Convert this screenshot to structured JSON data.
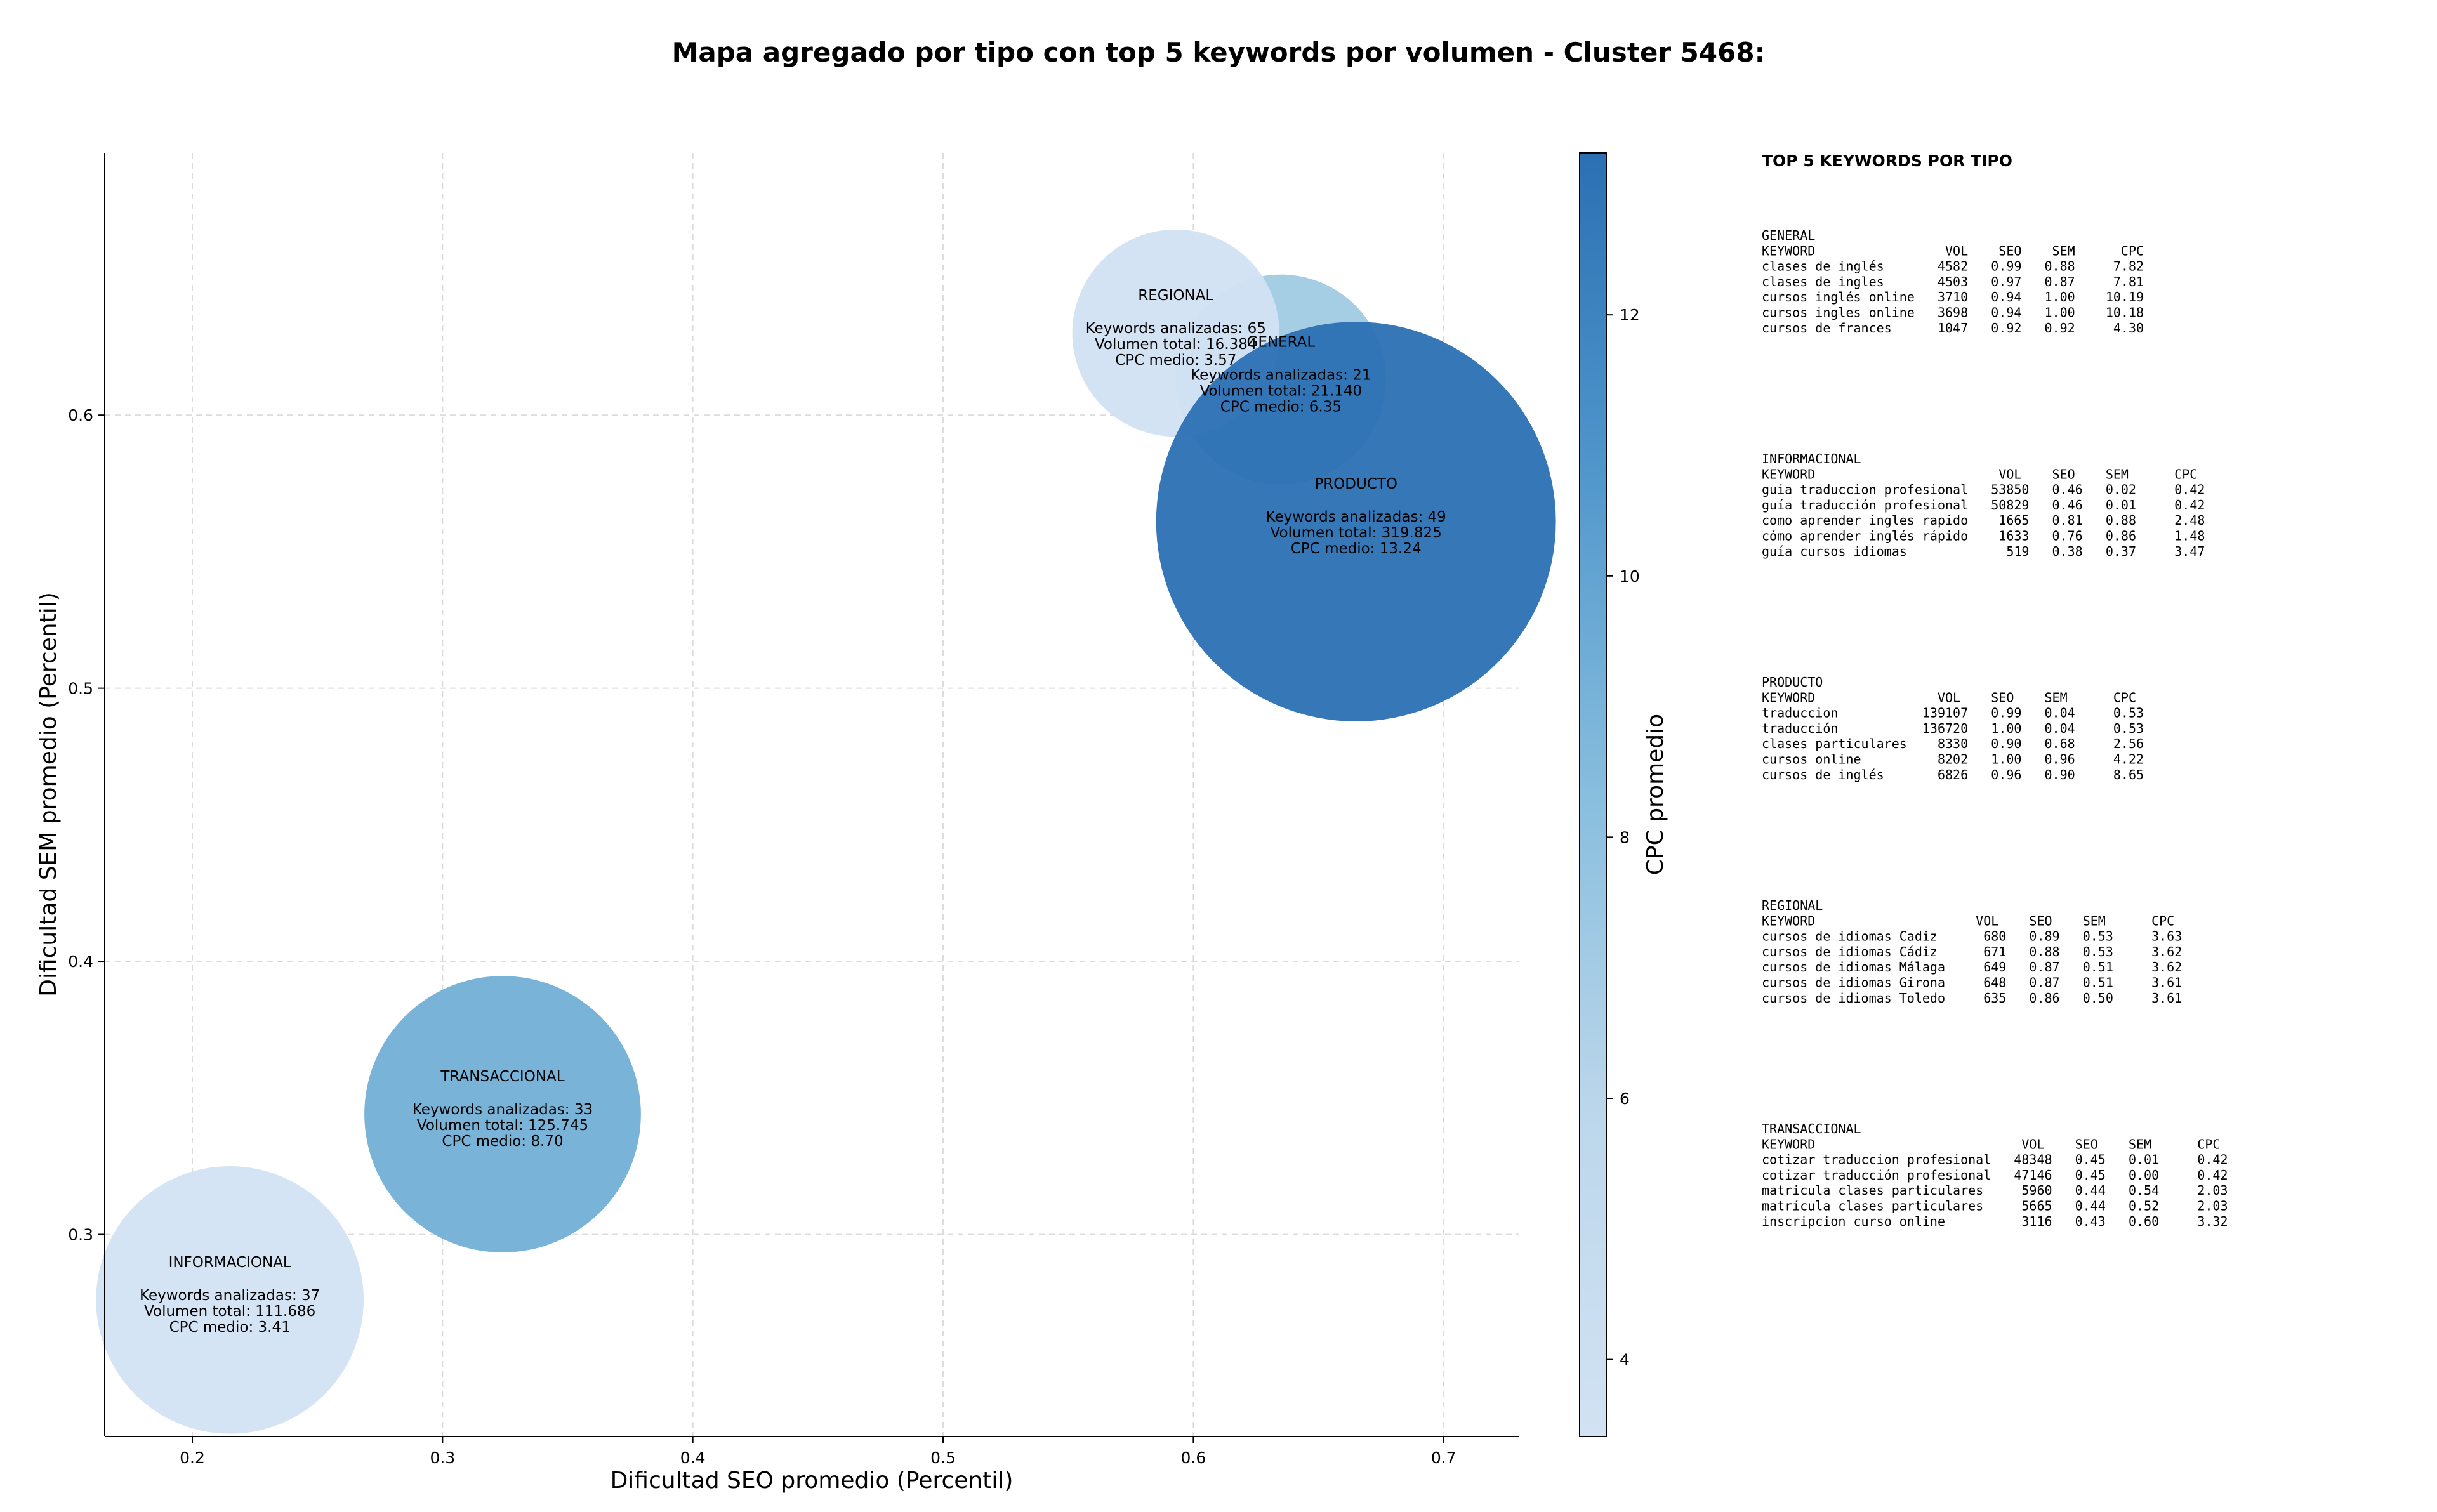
{
  "chart_data": {
    "type": "scatter",
    "subtype": "bubble",
    "title": "Mapa agregado por tipo con top 5 keywords por volumen - Cluster 5468:",
    "xlabel": "Dificultad SEO promedio (Percentil)",
    "ylabel": "Dificultad SEM promedio (Percentil)",
    "xlim": [
      0.165,
      0.73
    ],
    "ylim": [
      0.226,
      0.696
    ],
    "xticks": [
      0.2,
      0.3,
      0.4,
      0.5,
      0.6,
      0.7
    ],
    "xtick_labels": [
      "0.2",
      "0.3",
      "0.4",
      "0.5",
      "0.6",
      "0.7"
    ],
    "yticks": [
      0.3,
      0.4,
      0.5,
      0.6
    ],
    "ytick_labels": [
      "0.3",
      "0.4",
      "0.5",
      "0.6"
    ],
    "grid": true,
    "colorbar": {
      "label": "CPC promedio",
      "range": [
        3.41,
        13.24
      ],
      "ticks": [
        4,
        6,
        8,
        10,
        12
      ],
      "tick_labels": [
        "4",
        "6",
        "8",
        "10",
        "12"
      ],
      "colormap": "Blues",
      "color_low": "#d1e2f3",
      "color_high": "#2b70b3"
    },
    "points": [
      {
        "name": "INFORMACIONAL",
        "x": 0.215,
        "y": 0.276,
        "keywords_label": "Keywords analizadas: 37",
        "volume_label": "Volumen total: 111.686",
        "cpc_label": "CPC medio: 3.41",
        "cpc": 3.41,
        "volume": 111686,
        "color": "#d3e3f3"
      },
      {
        "name": "TRANSACCIONAL",
        "x": 0.324,
        "y": 0.344,
        "keywords_label": "Keywords analizadas: 33",
        "volume_label": "Volumen total: 125.745",
        "cpc_label": "CPC medio: 8.70",
        "cpc": 8.7,
        "volume": 125745,
        "color": "#72afd6"
      },
      {
        "name": "GENERAL",
        "x": 0.635,
        "y": 0.613,
        "keywords_label": "Keywords analizadas: 21",
        "volume_label": "Volumen total: 21.140",
        "cpc_label": "CPC medio: 6.35",
        "cpc": 6.35,
        "volume": 21140,
        "color": "#a0cae2"
      },
      {
        "name": "REGIONAL",
        "x": 0.593,
        "y": 0.63,
        "keywords_label": "Keywords analizadas: 65",
        "volume_label": "Volumen total: 16.384",
        "cpc_label": "CPC medio: 3.57",
        "cpc": 3.57,
        "volume": 16384,
        "color": "#d1e2f3"
      },
      {
        "name": "PRODUCTO",
        "x": 0.665,
        "y": 0.561,
        "keywords_label": "Keywords analizadas: 49",
        "volume_label": "Volumen total: 319.825",
        "cpc_label": "CPC medio: 13.24",
        "cpc": 13.24,
        "volume": 319825,
        "color": "#2b70b3"
      }
    ]
  },
  "panel": {
    "heading": "TOP 5 KEYWORDS POR TIPO",
    "groups": [
      {
        "name": "GENERAL",
        "header": "KEYWORD                 VOL    SEO    SEM      CPC",
        "rows": [
          "clases de inglés       4582   0.99   0.88     7.82",
          "clases de ingles       4503   0.97   0.87     7.81",
          "cursos inglés online   3710   0.94   1.00    10.19",
          "cursos ingles online   3698   0.94   1.00    10.18",
          "cursos de frances      1047   0.92   0.92     4.30"
        ]
      },
      {
        "name": "INFORMACIONAL",
        "header": "KEYWORD                        VOL    SEO    SEM      CPC",
        "rows": [
          "guia traduccion profesional   53850   0.46   0.02     0.42",
          "guía traducción profesional   50829   0.46   0.01     0.42",
          "como aprender ingles rapido    1665   0.81   0.88     2.48",
          "cómo aprender inglés rápido    1633   0.76   0.86     1.48",
          "guía cursos idiomas             519   0.38   0.37     3.47"
        ]
      },
      {
        "name": "PRODUCTO",
        "header": "KEYWORD                VOL    SEO    SEM      CPC",
        "rows": [
          "traduccion           139107   0.99   0.04     0.53",
          "traducción           136720   1.00   0.04     0.53",
          "clases particulares    8330   0.90   0.68     2.56",
          "cursos online          8202   1.00   0.96     4.22",
          "cursos de inglés       6826   0.96   0.90     8.65"
        ]
      },
      {
        "name": "REGIONAL",
        "header": "KEYWORD                     VOL    SEO    SEM      CPC",
        "rows": [
          "cursos de idiomas Cadiz      680   0.89   0.53     3.63",
          "cursos de idiomas Cádiz      671   0.88   0.53     3.62",
          "cursos de idiomas Málaga     649   0.87   0.51     3.62",
          "cursos de idiomas Girona     648   0.87   0.51     3.61",
          "cursos de idiomas Toledo     635   0.86   0.50     3.61"
        ]
      },
      {
        "name": "TRANSACCIONAL",
        "header": "KEYWORD                           VOL    SEO    SEM      CPC",
        "rows": [
          "cotizar traduccion profesional   48348   0.45   0.01     0.42",
          "cotizar traducción profesional   47146   0.45   0.00     0.42",
          "matricula clases particulares     5960   0.44   0.54     2.03",
          "matrícula clases particulares     5665   0.44   0.52     2.03",
          "inscripcion curso online          3116   0.43   0.60     3.32"
        ]
      }
    ]
  }
}
